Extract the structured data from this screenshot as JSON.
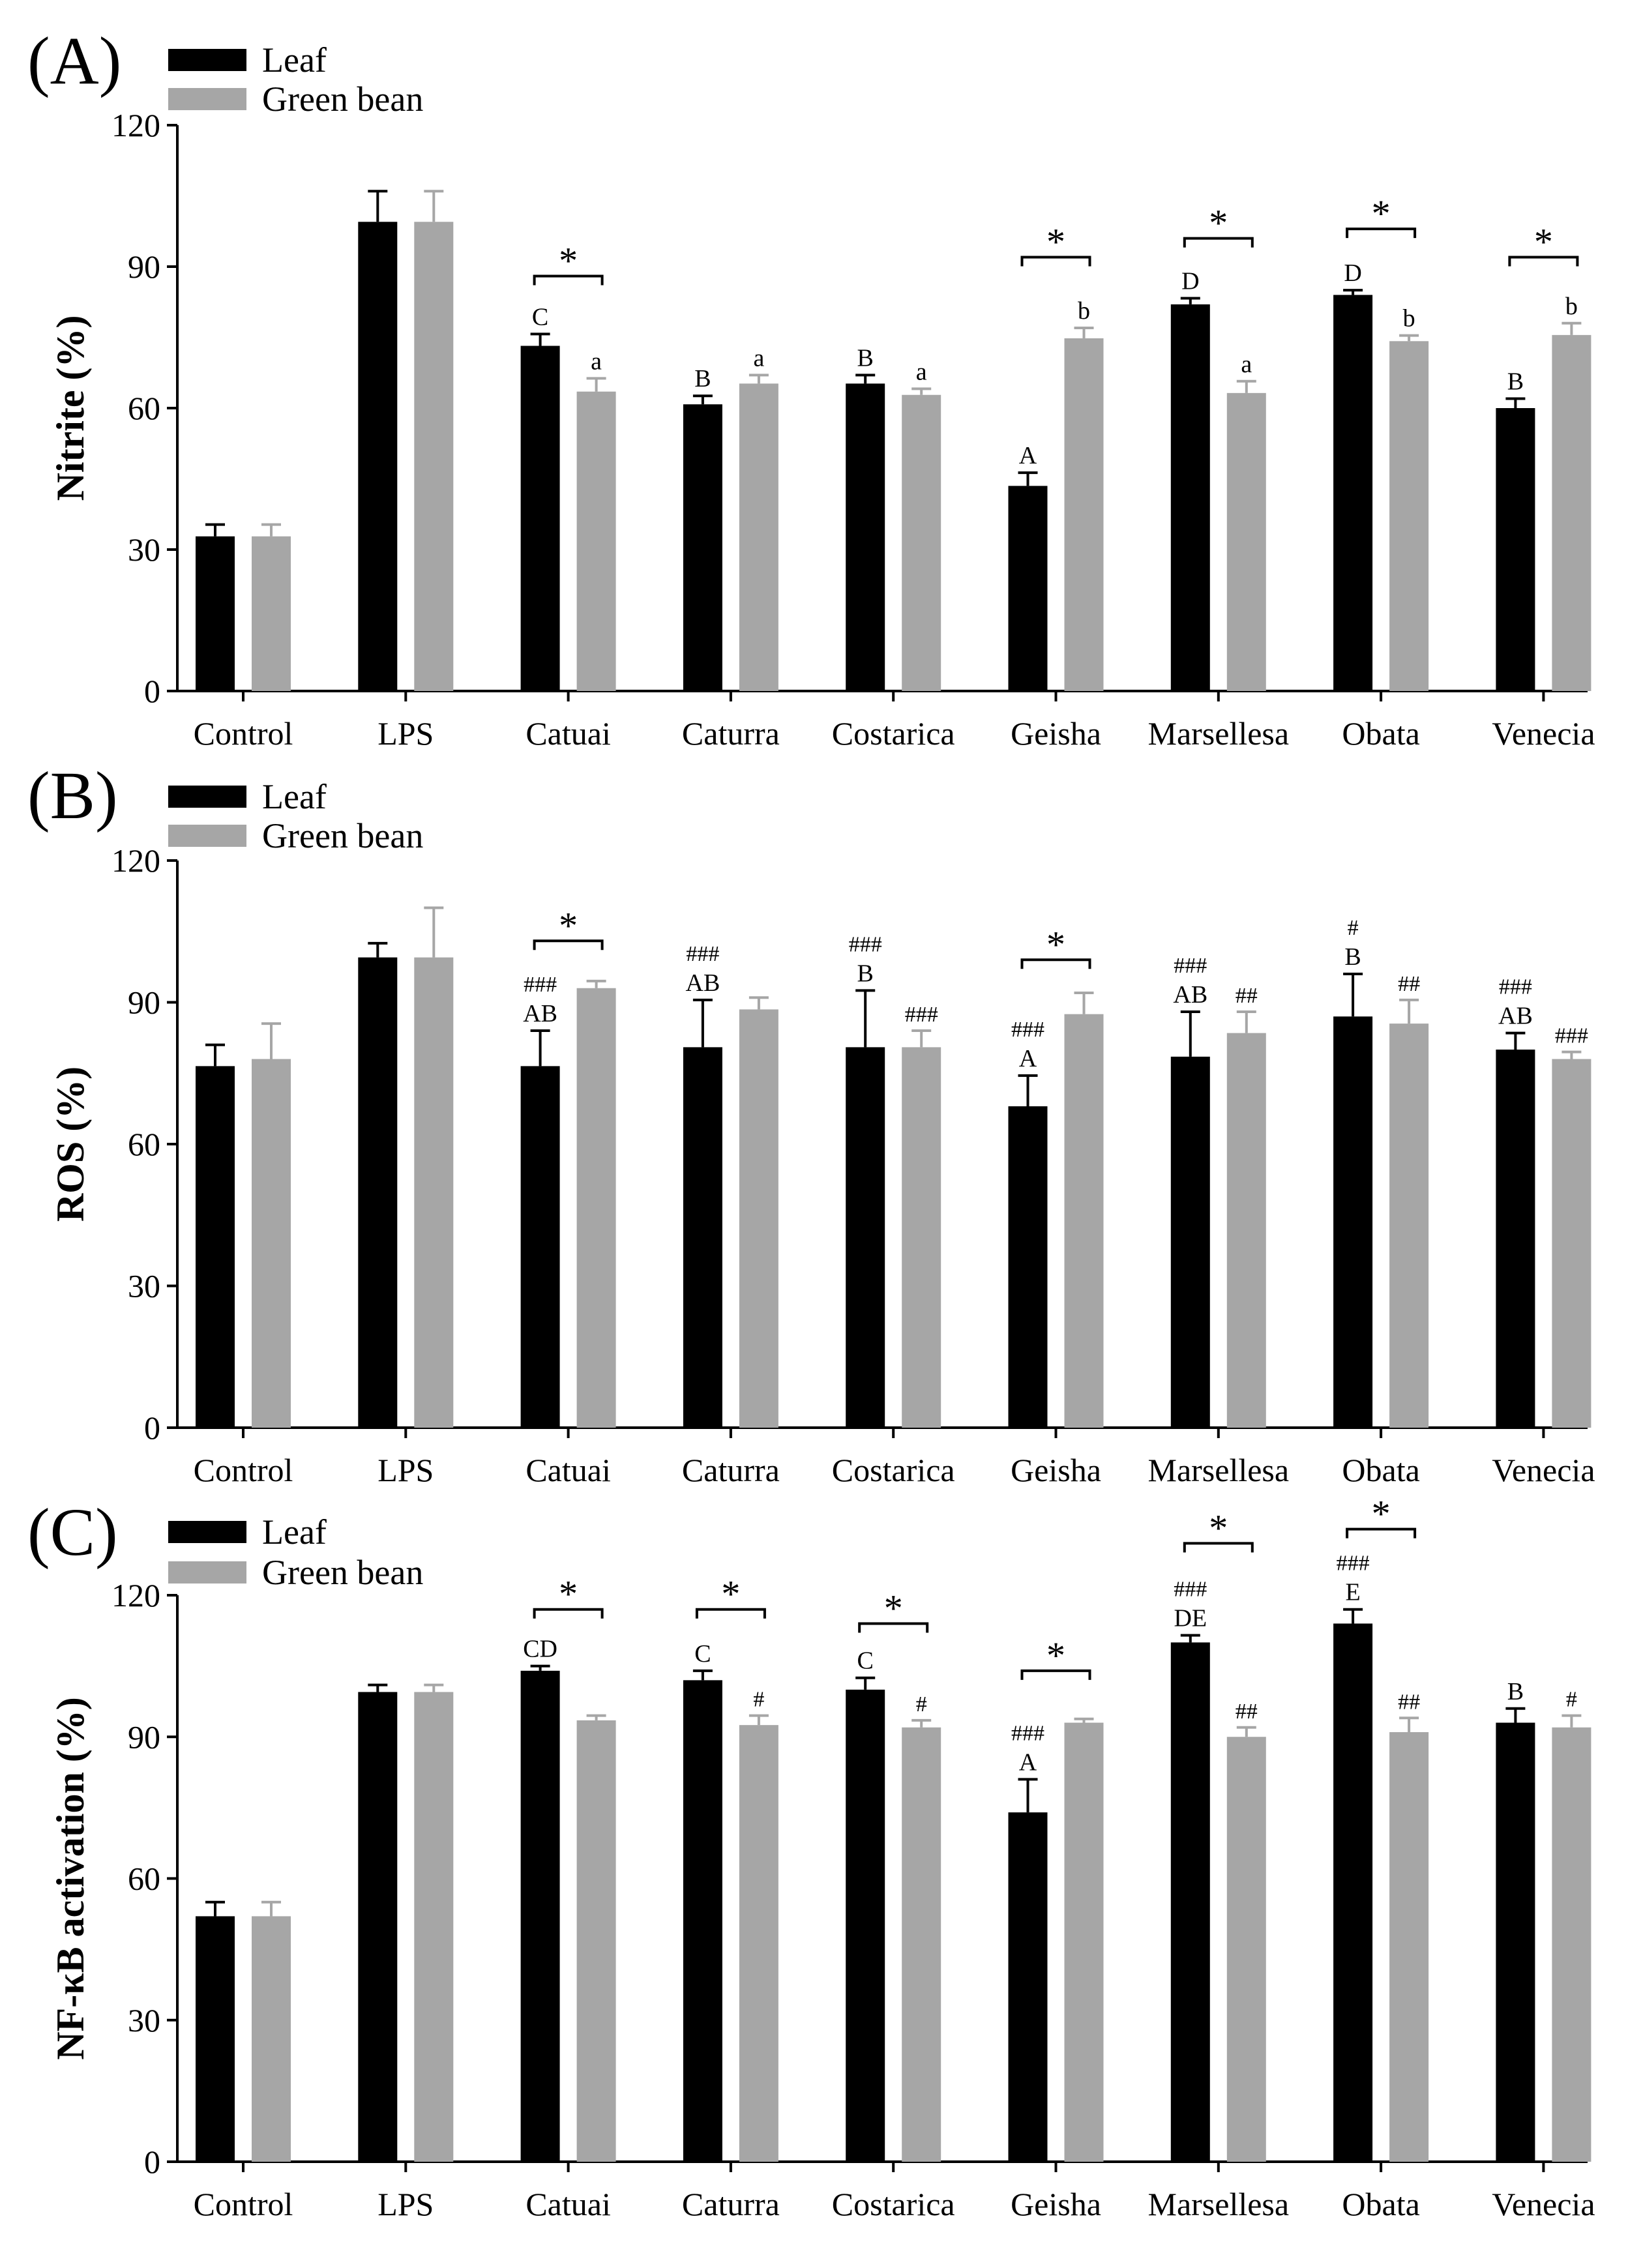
{
  "chart_data": [
    {
      "type": "bar",
      "panel_label": "(A)",
      "ylabel": "Nitrite (%)",
      "ylim": [
        0,
        120
      ],
      "yticks": [
        "0",
        "30",
        "60",
        "90",
        "120"
      ],
      "categories": [
        "Control",
        "LPS",
        "Catuai",
        "Caturra",
        "Costarica",
        "Geisha",
        "Marsellesa",
        "Obata",
        "Venecia"
      ],
      "legend": {
        "position": "top-left",
        "entries": [
          "Leaf",
          "Green bean"
        ]
      },
      "series": [
        {
          "name": "Leaf",
          "color": "#000000",
          "values": [
            32.8,
            99.5,
            73.2,
            60.8,
            65.2,
            43.5,
            82.0,
            84.0,
            60.0
          ],
          "errors": [
            2.5,
            6.5,
            2.5,
            1.8,
            1.8,
            2.8,
            1.3,
            1.0,
            2.0
          ],
          "letters": [
            "",
            "",
            "C",
            "B",
            "B",
            "A",
            "D",
            "D",
            "B"
          ],
          "hashes": [
            "",
            "",
            "",
            "",
            "",
            "",
            "",
            "",
            ""
          ]
        },
        {
          "name": "Green bean",
          "color": "#a6a6a6",
          "values": [
            32.8,
            99.5,
            63.5,
            65.2,
            62.8,
            74.8,
            63.2,
            74.2,
            75.5
          ],
          "errors": [
            2.5,
            6.5,
            2.8,
            1.8,
            1.3,
            2.2,
            2.5,
            1.2,
            2.5
          ],
          "letters": [
            "",
            "",
            "a",
            "a",
            "a",
            "b",
            "a",
            "b",
            "b"
          ],
          "hashes": [
            "",
            "",
            "",
            "",
            "",
            "",
            "",
            "",
            ""
          ]
        }
      ],
      "significance": [
        {
          "category_index": 2,
          "label": "*",
          "bracket_value": 88.0
        },
        {
          "category_index": 5,
          "label": "*",
          "bracket_value": 92.0
        },
        {
          "category_index": 6,
          "label": "*",
          "bracket_value": 96.0
        },
        {
          "category_index": 7,
          "label": "*",
          "bracket_value": 98.0
        },
        {
          "category_index": 8,
          "label": "*",
          "bracket_value": 92.0
        }
      ]
    },
    {
      "type": "bar",
      "panel_label": "(B)",
      "ylabel": "ROS (%)",
      "ylim": [
        0,
        120
      ],
      "yticks": [
        "0",
        "30",
        "60",
        "90",
        "120"
      ],
      "categories": [
        "Control",
        "LPS",
        "Catuai",
        "Caturra",
        "Costarica",
        "Geisha",
        "Marsellesa",
        "Obata",
        "Venecia"
      ],
      "legend": {
        "position": "top-left",
        "entries": [
          "Leaf",
          "Green bean"
        ]
      },
      "series": [
        {
          "name": "Leaf",
          "color": "#000000",
          "values": [
            76.5,
            99.5,
            76.5,
            80.5,
            80.5,
            68.0,
            78.5,
            87.0,
            80.0
          ],
          "errors": [
            4.5,
            3.0,
            7.5,
            10.0,
            12.0,
            6.5,
            9.5,
            9.0,
            3.5
          ],
          "letters": [
            "",
            "",
            "AB",
            "AB",
            "B",
            "A",
            "AB",
            "B",
            "AB"
          ],
          "hashes": [
            "",
            "",
            "###",
            "###",
            "###",
            "###",
            "###",
            "#",
            "###"
          ]
        },
        {
          "name": "Green bean",
          "color": "#a6a6a6",
          "values": [
            78.0,
            99.5,
            93.0,
            88.5,
            80.5,
            87.5,
            83.5,
            85.5,
            78.0
          ],
          "errors": [
            7.5,
            10.5,
            1.5,
            2.5,
            3.5,
            4.5,
            4.5,
            5.0,
            1.5
          ],
          "letters": [
            "",
            "",
            "",
            "",
            "",
            "",
            "",
            "",
            ""
          ],
          "hashes": [
            "",
            "",
            "",
            "",
            "###",
            "",
            "##",
            "##",
            "###"
          ]
        }
      ],
      "significance": [
        {
          "category_index": 2,
          "label": "*",
          "bracket_value": 103.0
        },
        {
          "category_index": 5,
          "label": "*",
          "bracket_value": 99.0
        }
      ]
    },
    {
      "type": "bar",
      "panel_label": "(C)",
      "ylabel": "NF-κB activation (%)",
      "ylim": [
        0,
        120
      ],
      "yticks": [
        "0",
        "30",
        "60",
        "90",
        "120"
      ],
      "categories": [
        "Control",
        "LPS",
        "Catuai",
        "Caturra",
        "Costarica",
        "Geisha",
        "Marsellesa",
        "Obata",
        "Venecia"
      ],
      "legend": {
        "position": "top-left",
        "entries": [
          "Leaf",
          "Green bean"
        ]
      },
      "series": [
        {
          "name": "Leaf",
          "color": "#000000",
          "values": [
            52.0,
            99.5,
            104.0,
            102.0,
            100.0,
            74.0,
            110.0,
            114.0,
            93.0
          ],
          "errors": [
            3.0,
            1.5,
            1.0,
            2.0,
            2.5,
            7.0,
            1.5,
            3.0,
            3.0
          ],
          "letters": [
            "",
            "",
            "CD",
            "C",
            "C",
            "A",
            "DE",
            "E",
            "B"
          ],
          "hashes": [
            "",
            "",
            "",
            "",
            "",
            "###",
            "###",
            "###",
            ""
          ]
        },
        {
          "name": "Green bean",
          "color": "#a6a6a6",
          "values": [
            52.0,
            99.5,
            93.5,
            92.5,
            92.0,
            93.0,
            90.0,
            91.0,
            92.0
          ],
          "errors": [
            3.0,
            1.5,
            1.0,
            2.0,
            1.5,
            0.8,
            2.0,
            3.0,
            2.5
          ],
          "letters": [
            "",
            "",
            "",
            "",
            "",
            "",
            "",
            "",
            ""
          ],
          "hashes": [
            "",
            "",
            "",
            "#",
            "#",
            "",
            "##",
            "##",
            "#"
          ]
        }
      ],
      "significance": [
        {
          "category_index": 2,
          "label": "*",
          "bracket_value": 117.0
        },
        {
          "category_index": 3,
          "label": "*",
          "bracket_value": 117.0
        },
        {
          "category_index": 4,
          "label": "*",
          "bracket_value": 114.0
        },
        {
          "category_index": 5,
          "label": "*",
          "bracket_value": 104.0
        },
        {
          "category_index": 6,
          "label": "*",
          "bracket_value": 131.0
        },
        {
          "category_index": 7,
          "label": "*",
          "bracket_value": 134.0
        }
      ]
    }
  ]
}
